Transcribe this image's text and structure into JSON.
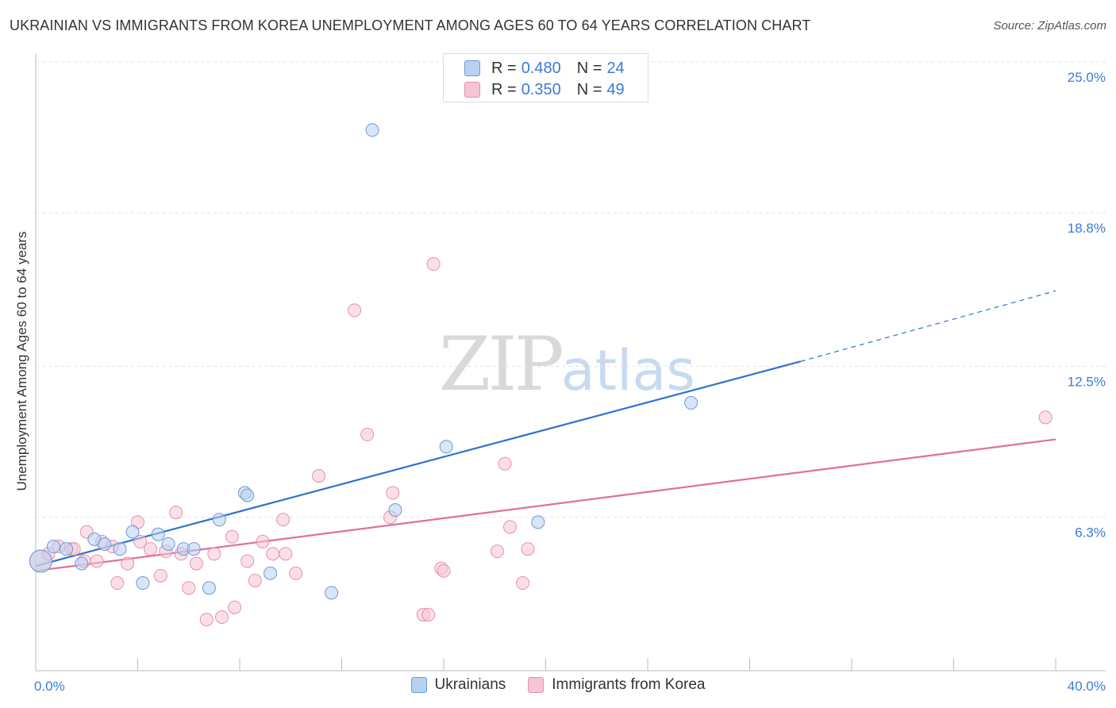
{
  "header": {
    "title": "UKRAINIAN VS IMMIGRANTS FROM KOREA UNEMPLOYMENT AMONG AGES 60 TO 64 YEARS CORRELATION CHART",
    "source": "Source: ZipAtlas.com"
  },
  "watermark": {
    "zip": "ZIP",
    "atlas": "atlas"
  },
  "legend": {
    "r_label": "R =",
    "n_label": "N =",
    "rows": [
      {
        "r": "0.480",
        "n": "24"
      },
      {
        "r": "0.350",
        "n": "49"
      }
    ]
  },
  "colors": {
    "blue_fill": "#b8d1f3",
    "blue_stroke": "#6a9ad8",
    "blue_line": "#2f72d0",
    "pink_fill": "#f7c4d3",
    "pink_stroke": "#e690ad",
    "pink_line": "#e0709a",
    "tick_color": "#3a7bd5"
  },
  "chart_data": {
    "type": "scatter",
    "title": "UKRAINIAN VS IMMIGRANTS FROM KOREA UNEMPLOYMENT AMONG AGES 60 TO 64 YEARS CORRELATION CHART",
    "xlabel": "",
    "ylabel": "Unemployment Among Ages 60 to 64 years",
    "xlim": [
      0,
      40
    ],
    "ylim": [
      0,
      25
    ],
    "x_tick_labels": [
      "0.0%",
      "40.0%"
    ],
    "y_ticks": [
      6.3,
      12.5,
      18.8,
      25.0
    ],
    "y_tick_labels": [
      "6.3%",
      "12.5%",
      "18.8%",
      "25.0%"
    ],
    "grid": true,
    "legend_position": "bottom",
    "series": [
      {
        "name": "Ukrainians",
        "r": 0.48,
        "n": 24,
        "points": [
          [
            0.2,
            4.5
          ],
          [
            0.7,
            5.1
          ],
          [
            1.2,
            5.0
          ],
          [
            1.8,
            4.4
          ],
          [
            2.3,
            5.4
          ],
          [
            2.7,
            5.2
          ],
          [
            3.3,
            5.0
          ],
          [
            3.8,
            5.7
          ],
          [
            4.2,
            3.6
          ],
          [
            4.8,
            5.6
          ],
          [
            5.2,
            5.2
          ],
          [
            5.8,
            5.0
          ],
          [
            6.2,
            5.0
          ],
          [
            6.8,
            3.4
          ],
          [
            7.2,
            6.2
          ],
          [
            8.2,
            7.3
          ],
          [
            8.3,
            7.2
          ],
          [
            9.2,
            4.0
          ],
          [
            11.6,
            3.2
          ],
          [
            13.2,
            22.2
          ],
          [
            14.1,
            6.6
          ],
          [
            16.1,
            9.2
          ],
          [
            19.7,
            6.1
          ],
          [
            25.7,
            11.0
          ]
        ],
        "trend": {
          "x0": 0,
          "y0": 4.3,
          "x1": 30.0,
          "y1": 12.7,
          "dashed_to": {
            "x": 40.0,
            "y": 15.6
          }
        }
      },
      {
        "name": "Immigrants from Korea",
        "r": 0.35,
        "n": 49,
        "points": [
          [
            0.2,
            4.5
          ],
          [
            0.5,
            4.8
          ],
          [
            0.9,
            5.1
          ],
          [
            1.4,
            5.0
          ],
          [
            1.5,
            5.0
          ],
          [
            1.9,
            4.5
          ],
          [
            2.0,
            5.7
          ],
          [
            2.4,
            4.5
          ],
          [
            2.6,
            5.3
          ],
          [
            3.0,
            5.1
          ],
          [
            3.2,
            3.6
          ],
          [
            3.6,
            4.4
          ],
          [
            4.0,
            6.1
          ],
          [
            4.1,
            5.3
          ],
          [
            4.5,
            5.0
          ],
          [
            4.9,
            3.9
          ],
          [
            5.1,
            4.9
          ],
          [
            5.5,
            6.5
          ],
          [
            5.7,
            4.8
          ],
          [
            6.0,
            3.4
          ],
          [
            6.3,
            4.4
          ],
          [
            6.7,
            2.1
          ],
          [
            7.0,
            4.8
          ],
          [
            7.3,
            2.2
          ],
          [
            7.7,
            5.5
          ],
          [
            7.8,
            2.6
          ],
          [
            8.3,
            4.5
          ],
          [
            8.6,
            3.7
          ],
          [
            8.9,
            5.3
          ],
          [
            9.3,
            4.8
          ],
          [
            9.7,
            6.2
          ],
          [
            9.8,
            4.8
          ],
          [
            10.2,
            4.0
          ],
          [
            11.1,
            8.0
          ],
          [
            12.5,
            14.8
          ],
          [
            13.0,
            9.7
          ],
          [
            13.9,
            6.3
          ],
          [
            14.0,
            7.3
          ],
          [
            15.2,
            2.3
          ],
          [
            15.4,
            2.3
          ],
          [
            15.6,
            16.7
          ],
          [
            15.9,
            4.2
          ],
          [
            16.0,
            4.1
          ],
          [
            18.1,
            4.9
          ],
          [
            18.4,
            8.5
          ],
          [
            18.6,
            5.9
          ],
          [
            19.1,
            3.6
          ],
          [
            19.3,
            5.0
          ],
          [
            39.6,
            10.4
          ]
        ],
        "trend": {
          "x0": 0,
          "y0": 4.1,
          "x1": 40.0,
          "y1": 9.5
        }
      }
    ]
  },
  "bottom_legend": {
    "items": [
      "Ukrainians",
      "Immigrants from Korea"
    ]
  }
}
